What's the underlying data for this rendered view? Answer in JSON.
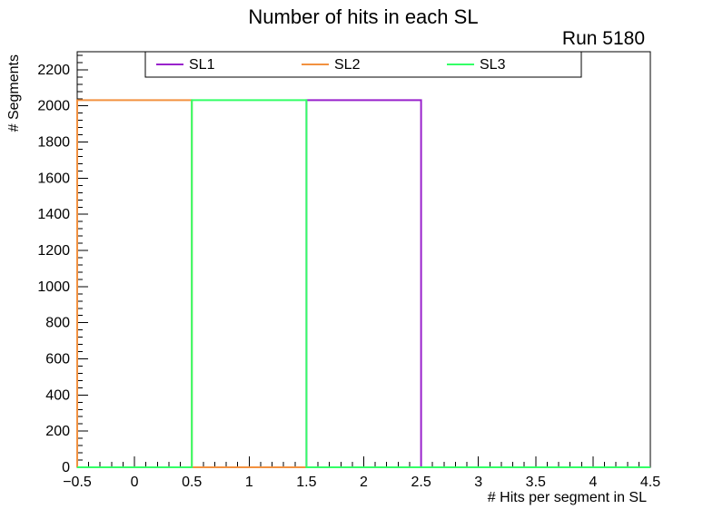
{
  "chart_data": {
    "type": "bar",
    "subtype": "step-histogram",
    "title": "Number of hits in each SL",
    "annotation": "Run 5180",
    "xlabel": "# Hits per segment in SL",
    "ylabel": "# Segments",
    "bin_edges": [
      -0.5,
      0.5,
      1.5,
      2.5,
      3.5,
      4.5
    ],
    "series": [
      {
        "name": "SL1",
        "color": "#9922cc",
        "values": [
          0,
          0,
          2032,
          0,
          0
        ]
      },
      {
        "name": "SL2",
        "color": "#f29140",
        "values": [
          2032,
          0,
          0,
          0,
          0
        ]
      },
      {
        "name": "SL3",
        "color": "#33ff66",
        "values": [
          0,
          2032,
          0,
          0,
          0
        ]
      }
    ],
    "xlim": [
      -0.5,
      4.5
    ],
    "ylim": [
      0,
      2300
    ],
    "x_ticks": {
      "major": [
        -0.5,
        0,
        0.5,
        1,
        1.5,
        2,
        2.5,
        3,
        3.5,
        4,
        4.5
      ],
      "labels": [
        "−0.5",
        "0",
        "0.5",
        "1",
        "1.5",
        "2",
        "2.5",
        "3",
        "3.5",
        "4",
        "4.5"
      ],
      "minor_step": 0.1
    },
    "y_ticks": {
      "major_step": 200,
      "max_label": 2200,
      "minor_step": 40
    },
    "legend": {
      "position": "top-inside",
      "entries": [
        "SL1",
        "SL2",
        "SL3"
      ]
    },
    "grid": false,
    "frame_color": "#000000",
    "background_color": "#ffffff"
  }
}
